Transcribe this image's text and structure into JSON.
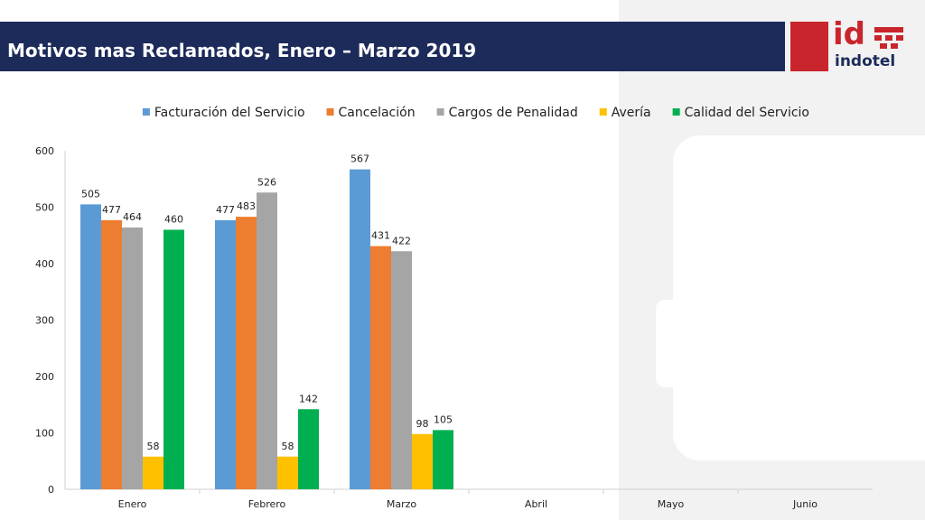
{
  "header": {
    "title": "Motivos mas Reclamados, Enero – Marzo 2019"
  },
  "logo": {
    "mark": "id",
    "name": "indotel",
    "red": "#c8252c",
    "navy": "#1d2b5b"
  },
  "chart_data": {
    "type": "bar",
    "title": "",
    "xlabel": "",
    "ylabel": "",
    "categories": [
      "Enero",
      "Febrero",
      "Marzo",
      "Abril",
      "Mayo",
      "Junio"
    ],
    "ylim": [
      0,
      600
    ],
    "yticks": [
      "0",
      "100",
      "200",
      "300",
      "400",
      "500",
      "600"
    ],
    "legend_position": "top",
    "grid": false,
    "series": [
      {
        "name": "Facturación del Servicio",
        "color": "#5b9bd5",
        "values": [
          505,
          477,
          567,
          null,
          null,
          null
        ]
      },
      {
        "name": "Cancelación",
        "color": "#ed7d31",
        "values": [
          477,
          483,
          431,
          null,
          null,
          null
        ]
      },
      {
        "name": "Cargos de Penalidad",
        "color": "#a5a5a5",
        "values": [
          464,
          526,
          422,
          null,
          null,
          null
        ]
      },
      {
        "name": "Avería",
        "color": "#ffc000",
        "values": [
          58,
          58,
          98,
          null,
          null,
          null
        ]
      },
      {
        "name": "Calidad del Servicio",
        "color": "#00b050",
        "values": [
          460,
          142,
          105,
          null,
          null,
          null
        ]
      }
    ]
  }
}
